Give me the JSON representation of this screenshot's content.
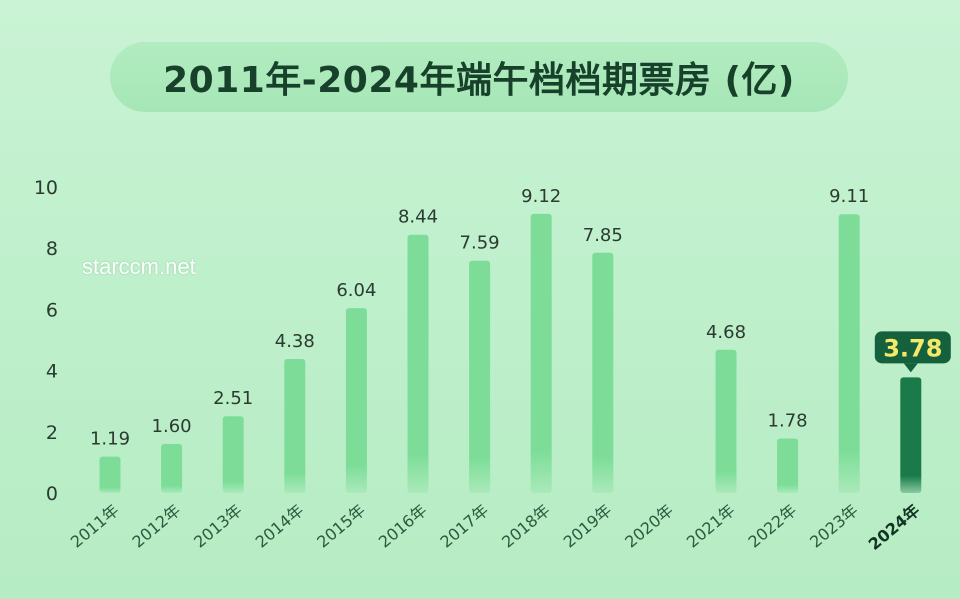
{
  "title": "2011年-2024年端午档档期票房 (亿)",
  "watermark": "starccm.net",
  "colors": {
    "bar": "#7ddd98",
    "bar_highlight": "#1a7a4a",
    "label": "#2b3b31",
    "callout_bg": "#15603d",
    "callout_text": "#f5e96a"
  },
  "chart_data": {
    "type": "bar",
    "title": "2011年-2024年端午档档期票房 (亿)",
    "xlabel": "",
    "ylabel": "",
    "ylim": [
      0,
      10
    ],
    "yticks": [
      0,
      2,
      4,
      6,
      8,
      10
    ],
    "grid": false,
    "categories": [
      "2011年",
      "2012年",
      "2013年",
      "2014年",
      "2015年",
      "2016年",
      "2017年",
      "2018年",
      "2019年",
      "2020年",
      "2021年",
      "2022年",
      "2023年",
      "2024年"
    ],
    "values": [
      1.19,
      1.6,
      2.51,
      4.38,
      6.04,
      8.44,
      7.59,
      9.12,
      7.85,
      null,
      4.68,
      1.78,
      9.11,
      3.78
    ],
    "value_labels": [
      "1.19",
      "1.60",
      "2.51",
      "4.38",
      "6.04",
      "8.44",
      "7.59",
      "9.12",
      "7.85",
      "",
      "4.68",
      "1.78",
      "9.11",
      "3.78"
    ],
    "highlight_index": 13
  }
}
